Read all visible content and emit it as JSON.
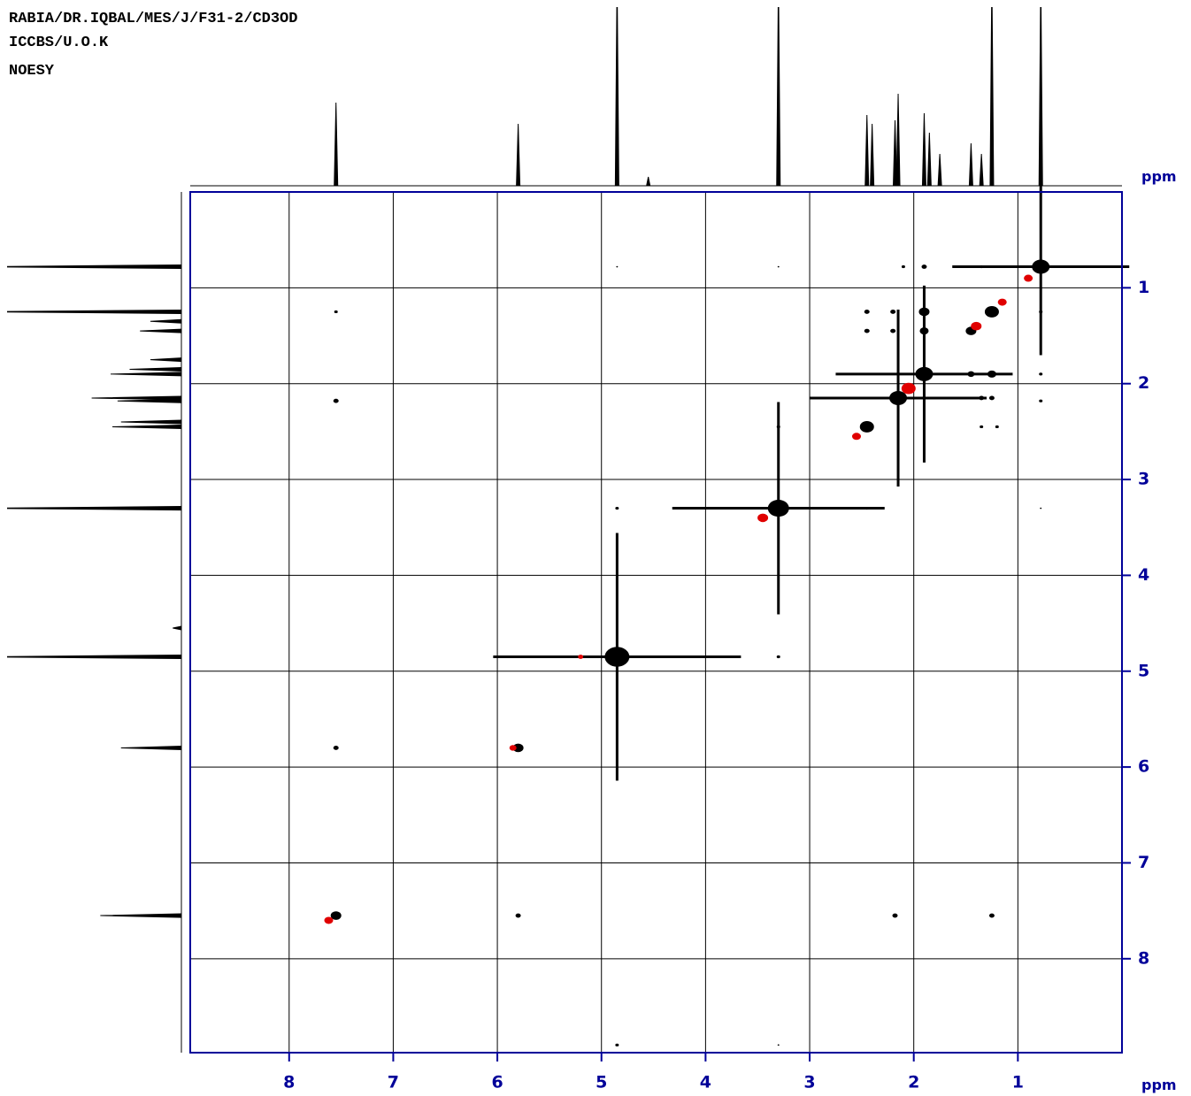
{
  "chart_data": {
    "type": "noesy",
    "title": "RABIA/DR.IQBAL/MES/J/F31-2/CD3OD",
    "subtitle": "ICCBS/U.O.K",
    "experiment": "NOESY",
    "x_label": "ppm",
    "y_label": "ppm",
    "xlim": [
      8.95,
      0
    ],
    "ylim": [
      0,
      8.98
    ],
    "xticks": [
      8,
      7,
      6,
      5,
      4,
      3,
      2,
      1
    ],
    "yticks": [
      1,
      2,
      3,
      4,
      5,
      6,
      7,
      8
    ],
    "grid": true,
    "projection": {
      "color": "#000000",
      "shifts": [
        7.55,
        5.8,
        4.85,
        4.55,
        3.3,
        2.45,
        2.4,
        2.18,
        2.15,
        1.9,
        1.85,
        1.75,
        1.45,
        1.35,
        1.25,
        0.78
      ],
      "heights": [
        0.47,
        0.35,
        1.2,
        0.05,
        1.2,
        0.4,
        0.35,
        0.37,
        0.52,
        0.41,
        0.3,
        0.18,
        0.24,
        0.18,
        1.2,
        1.2
      ]
    },
    "series": [
      {
        "color": "#000000",
        "x": [
          7.55,
          5.8,
          4.85,
          3.3,
          0.78,
          1.25,
          1.9,
          2.15,
          2.45,
          1.45,
          7.55,
          7.55,
          7.55,
          5.8,
          2.18,
          1.25,
          4.85,
          3.3,
          1.9,
          2.1,
          1.35,
          0.78,
          0.78,
          0.78,
          2.45,
          2.2,
          1.9,
          2.45,
          2.2,
          1.9,
          1.25,
          1.25,
          1.35,
          1.45,
          1.35,
          1.2,
          3.3,
          2.45,
          3.3,
          4.85,
          0.78,
          4.85,
          3.3
        ],
        "y": [
          7.55,
          5.8,
          4.85,
          3.3,
          0.78,
          1.25,
          1.9,
          2.15,
          2.45,
          1.45,
          1.25,
          2.18,
          5.8,
          7.55,
          7.55,
          7.55,
          0.78,
          0.78,
          0.78,
          0.78,
          0.78,
          1.25,
          1.9,
          2.18,
          1.25,
          1.25,
          1.25,
          1.45,
          1.45,
          1.45,
          1.9,
          2.15,
          2.15,
          1.9,
          2.45,
          2.45,
          2.45,
          3.3,
          4.85,
          3.3,
          3.3,
          8.9,
          8.9
        ],
        "size": [
          6,
          6,
          14,
          12,
          10,
          8,
          10,
          10,
          8,
          6,
          2,
          3,
          3,
          3,
          3,
          3,
          1,
          1,
          3,
          2,
          2,
          2,
          2,
          2,
          3,
          3,
          6,
          3,
          3,
          5,
          5,
          3,
          3,
          4,
          2,
          2,
          2,
          2,
          2,
          2,
          1,
          2,
          1
        ]
      },
      {
        "color": "#e00000",
        "x": [
          7.62,
          5.85,
          3.45,
          2.05,
          1.4,
          0.9,
          2.55,
          1.15,
          5.2
        ],
        "y": [
          7.6,
          5.8,
          3.4,
          2.05,
          1.4,
          0.9,
          2.55,
          1.15,
          4.85
        ],
        "size": [
          5,
          4,
          6,
          8,
          6,
          5,
          5,
          5,
          3
        ]
      }
    ]
  }
}
